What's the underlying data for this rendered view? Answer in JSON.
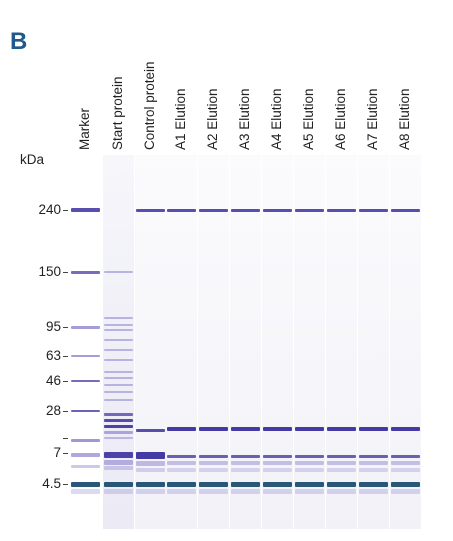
{
  "panel_label": "B",
  "unit_label": "kDa",
  "lanes": [
    "Marker",
    "Start protein",
    "Control protein",
    "A1 Elution",
    "A2 Elution",
    "A3 Elution",
    "A4 Elution",
    "A5 Elution",
    "A6 Elution",
    "A7 Elution",
    "A8 Elution"
  ],
  "ladder": [
    {
      "label": "240",
      "kda": 240
    },
    {
      "label": "150",
      "kda": 150
    },
    {
      "label": "95",
      "kda": 95
    },
    {
      "label": "63",
      "kda": 63
    },
    {
      "label": "46",
      "kda": 46
    },
    {
      "label": "28",
      "kda": 28
    },
    {
      "label": "",
      "kda": 17
    },
    {
      "label": "7",
      "kda": 7
    },
    {
      "label": "4.5",
      "kda": 4.5
    }
  ],
  "colors": {
    "band": "#3a2fa0",
    "band_faint": "#9a92d4",
    "front": "#1f4d70",
    "panel_letter": "#1f5a8a"
  }
}
